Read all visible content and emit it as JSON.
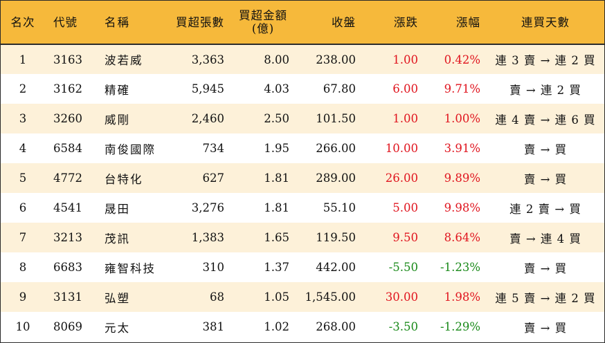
{
  "headers": {
    "rank": "名次",
    "code": "代號",
    "name": "名稱",
    "net_lots": "買超張數",
    "net_amount_line1": "買超金額",
    "net_amount_line2": "(億)",
    "close": "收盤",
    "change": "漲跌",
    "change_pct": "漲幅",
    "streak": "連買天數"
  },
  "rows": [
    {
      "rank": "1",
      "code": "3163",
      "name": "波若威",
      "net_lots": "3,363",
      "net_amount": "8.00",
      "close": "238.00",
      "change": "1.00",
      "change_pct": "0.42%",
      "direction": "up",
      "streak": "連 3 賣 → 連 2 買"
    },
    {
      "rank": "2",
      "code": "3162",
      "name": "精確",
      "net_lots": "5,945",
      "net_amount": "4.03",
      "close": "67.80",
      "change": "6.00",
      "change_pct": "9.71%",
      "direction": "up",
      "streak": "賣 → 連 2 買"
    },
    {
      "rank": "3",
      "code": "3260",
      "name": "威剛",
      "net_lots": "2,460",
      "net_amount": "2.50",
      "close": "101.50",
      "change": "1.00",
      "change_pct": "1.00%",
      "direction": "up",
      "streak": "連 4 賣 → 連 6 買"
    },
    {
      "rank": "4",
      "code": "6584",
      "name": "南俊國際",
      "net_lots": "734",
      "net_amount": "1.95",
      "close": "266.00",
      "change": "10.00",
      "change_pct": "3.91%",
      "direction": "up",
      "streak": "賣 → 買"
    },
    {
      "rank": "5",
      "code": "4772",
      "name": "台特化",
      "net_lots": "627",
      "net_amount": "1.81",
      "close": "289.00",
      "change": "26.00",
      "change_pct": "9.89%",
      "direction": "up",
      "streak": "賣 → 買"
    },
    {
      "rank": "6",
      "code": "4541",
      "name": "晟田",
      "net_lots": "3,276",
      "net_amount": "1.81",
      "close": "55.10",
      "change": "5.00",
      "change_pct": "9.98%",
      "direction": "up",
      "streak": "連 2 賣 → 買"
    },
    {
      "rank": "7",
      "code": "3213",
      "name": "茂訊",
      "net_lots": "1,383",
      "net_amount": "1.65",
      "close": "119.50",
      "change": "9.50",
      "change_pct": "8.64%",
      "direction": "up",
      "streak": "賣 → 連 4 買"
    },
    {
      "rank": "8",
      "code": "6683",
      "name": "雍智科技",
      "net_lots": "310",
      "net_amount": "1.37",
      "close": "442.00",
      "change": "-5.50",
      "change_pct": "-1.23%",
      "direction": "down",
      "streak": "賣 → 買"
    },
    {
      "rank": "9",
      "code": "3131",
      "name": "弘塑",
      "net_lots": "68",
      "net_amount": "1.05",
      "close": "1,545.00",
      "change": "30.00",
      "change_pct": "1.98%",
      "direction": "up",
      "streak": "連 5 賣 → 連 2 買"
    },
    {
      "rank": "10",
      "code": "8069",
      "name": "元太",
      "net_lots": "381",
      "net_amount": "1.02",
      "close": "268.00",
      "change": "-3.50",
      "change_pct": "-1.29%",
      "direction": "down",
      "streak": "賣 → 買"
    }
  ],
  "colors": {
    "header_bg": "#f6b93b",
    "stripe_bg": "#fdf1d9",
    "up": "#e0141e",
    "down": "#1a8a1a"
  }
}
